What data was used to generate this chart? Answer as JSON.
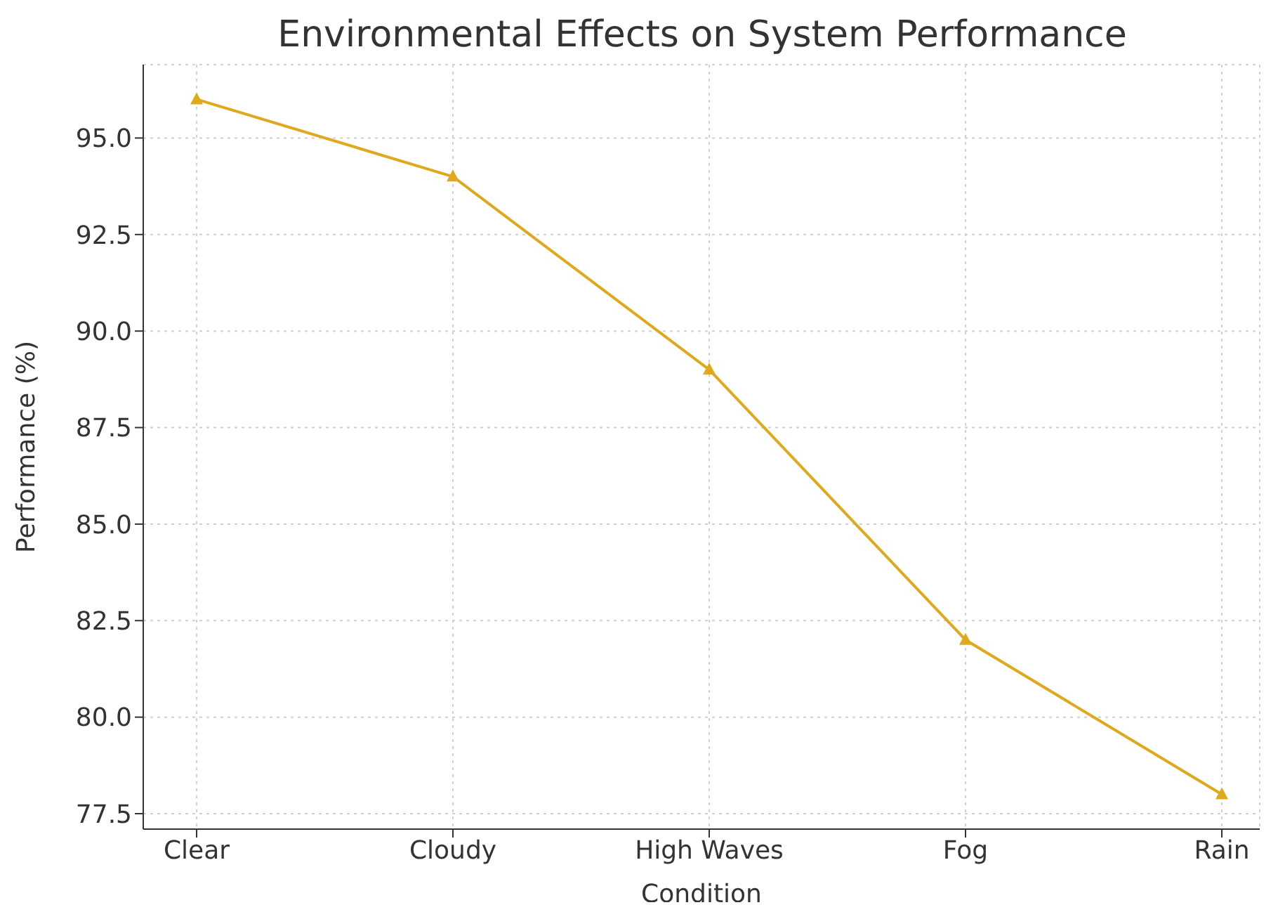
{
  "chart_data": {
    "type": "line",
    "title": "Environmental Effects on System Performance",
    "xlabel": "Condition",
    "ylabel": "Performance (%)",
    "categories": [
      "Clear",
      "Cloudy",
      "High Waves",
      "Fog",
      "Rain"
    ],
    "series": [
      {
        "color": "#e0a81c",
        "values": [
          96,
          94,
          89,
          82,
          78
        ]
      }
    ],
    "ylim": [
      77.1,
      96.9
    ],
    "yticks": [
      {
        "value": 77.5,
        "label": "77.5"
      },
      {
        "value": 80,
        "label": "80.0"
      },
      {
        "value": 82.5,
        "label": "82.5"
      },
      {
        "value": 85,
        "label": "85.0"
      },
      {
        "value": 87.5,
        "label": "87.5"
      },
      {
        "value": 90,
        "label": "90.0"
      },
      {
        "value": 92.5,
        "label": "92.5"
      },
      {
        "value": 95,
        "label": "95.0"
      }
    ],
    "grid": true,
    "marker": "triangle",
    "line_style": "solid"
  }
}
